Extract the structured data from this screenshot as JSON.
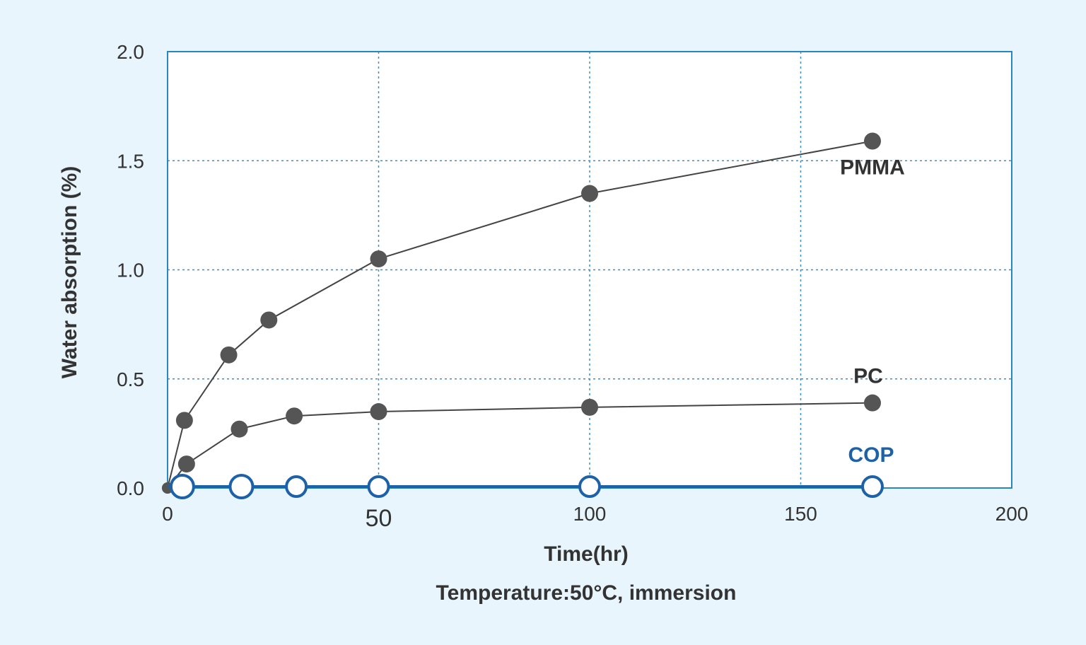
{
  "chart_data": {
    "type": "line",
    "title": "",
    "xlabel": "Time(hr)",
    "ylabel": "Water absorption (%)",
    "note": "Temperature:50°C, immersion",
    "xlim": [
      0,
      200
    ],
    "ylim": [
      0,
      2.0
    ],
    "x_ticks": [
      {
        "value": 0,
        "label": "0"
      },
      {
        "value": 50,
        "label": "50"
      },
      {
        "value": 100,
        "label": "100"
      },
      {
        "value": 150,
        "label": "150"
      },
      {
        "value": 200,
        "label": "200"
      }
    ],
    "y_ticks": [
      {
        "value": 0,
        "label": "0.0"
      },
      {
        "value": 0.5,
        "label": "0.5"
      },
      {
        "value": 1.0,
        "label": "1.0"
      },
      {
        "value": 1.5,
        "label": "1.5"
      },
      {
        "value": 2.0,
        "label": "2.0"
      }
    ],
    "grid": {
      "x": [
        50,
        100,
        150
      ],
      "y": [
        0.5,
        1.0,
        1.5
      ],
      "style": "dotted"
    },
    "series": [
      {
        "name": "PMMA",
        "color": "#555555",
        "marker": "filled-circle",
        "x": [
          0,
          4,
          14.5,
          24,
          50,
          100,
          167
        ],
        "y": [
          0,
          0.31,
          0.61,
          0.77,
          1.05,
          1.35,
          1.59
        ]
      },
      {
        "name": "PC",
        "color": "#555555",
        "marker": "filled-circle",
        "x": [
          0,
          4.5,
          17,
          30,
          50,
          100,
          167
        ],
        "y": [
          0,
          0.11,
          0.27,
          0.33,
          0.35,
          0.37,
          0.39
        ]
      },
      {
        "name": "COP",
        "color": "#1d62a6",
        "marker": "open-circle",
        "x": [
          3.5,
          17.5,
          30.5,
          50,
          100,
          167
        ],
        "y": [
          0,
          0,
          0,
          0,
          0,
          0
        ]
      }
    ]
  }
}
